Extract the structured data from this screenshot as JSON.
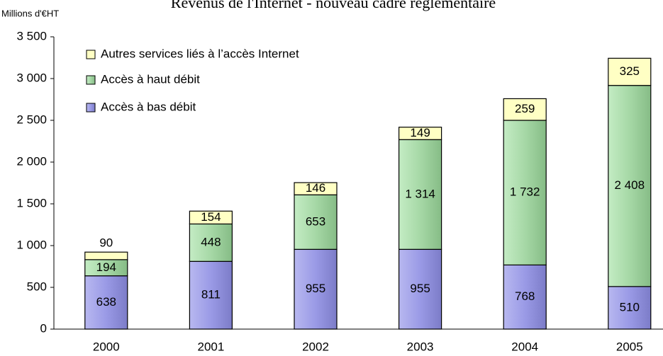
{
  "chart_data": {
    "type": "stacked_bar",
    "title": "Revenus de l'Internet - nouveau cadre réglementaire",
    "y_label": "Millions d'€HT",
    "categories": [
      "2000",
      "2001",
      "2002",
      "2003",
      "2004",
      "2005"
    ],
    "series": [
      {
        "name": "Accès à bas débit",
        "color": "#9a9ae6",
        "values": [
          638,
          811,
          955,
          955,
          768,
          510
        ]
      },
      {
        "name": "Accès à haut débit",
        "color": "#a6d8a6",
        "values": [
          194,
          448,
          653,
          1314,
          1732,
          2408
        ],
        "value_labels": [
          "194",
          "448",
          "653",
          "1 314",
          "1 732",
          "2 408"
        ]
      },
      {
        "name": "Autres services liés à l’accès Internet",
        "color": "#ffffc4",
        "values": [
          90,
          154,
          146,
          149,
          259,
          325
        ]
      }
    ],
    "ylim": [
      0,
      3500
    ],
    "yticks": [
      0,
      500,
      {
        "value": 1000,
        "label": "1 000"
      },
      {
        "value": 1500,
        "label": "1 500"
      },
      {
        "value": 2000,
        "label": "2 000"
      },
      {
        "value": 2500,
        "label": "2 500"
      },
      {
        "value": 3000,
        "label": "3 000"
      },
      {
        "value": 3500,
        "label": "3 500"
      }
    ],
    "legend": "upper left"
  }
}
